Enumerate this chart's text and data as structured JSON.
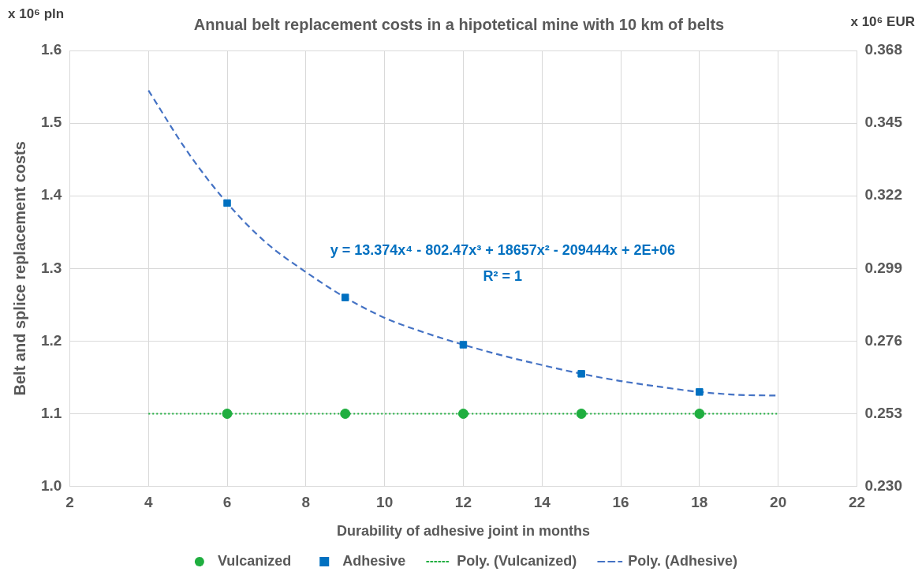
{
  "chart_data": {
    "type": "scatter",
    "title": "Annual belt replacement costs in a hipotetical mine with 10 km of belts",
    "xlabel": "Durability of adhesive joint in months",
    "ylabel": "Belt and splice replacement costs",
    "annotations": [
      "x 10⁶ pln",
      "x 10⁶ EUR",
      "y = 13.374x⁴ - 802.47x³ + 18657x² - 209444x + 2E+06",
      "R² = 1"
    ],
    "series": [
      {
        "name": "Vulcanized",
        "type": "scatter",
        "color": "#1fae3f",
        "marker": "circle",
        "x": [
          6,
          9,
          12,
          15,
          18
        ],
        "values": [
          1.1,
          1.1,
          1.1,
          1.1,
          1.1
        ]
      },
      {
        "name": "Adhesive",
        "type": "scatter",
        "color": "#0070c0",
        "marker": "square",
        "x": [
          6,
          9,
          12,
          15,
          18
        ],
        "values": [
          1.39,
          1.26,
          1.195,
          1.155,
          1.13
        ]
      },
      {
        "name": "Poly. (Vulcanized)",
        "type": "line",
        "color": "#1fae3f",
        "line_style": "dotted",
        "marker": "none",
        "x": [
          4,
          20
        ],
        "values": [
          1.1,
          1.1
        ]
      },
      {
        "name": "Poly. (Adhesive)",
        "type": "line",
        "color": "#4472c4",
        "line_style": "dashed",
        "marker": "none",
        "x": [
          4,
          5,
          6,
          7,
          8,
          9,
          10,
          11,
          12,
          13,
          14,
          15,
          16,
          17,
          18,
          19,
          20
        ],
        "values": [
          1.545,
          1.46,
          1.39,
          1.335,
          1.295,
          1.26,
          1.232,
          1.212,
          1.195,
          1.18,
          1.167,
          1.155,
          1.145,
          1.137,
          1.13,
          1.126,
          1.125
        ]
      }
    ],
    "xlim": [
      2,
      22
    ],
    "xticks": [
      2,
      4,
      6,
      8,
      10,
      12,
      14,
      16,
      18,
      20,
      22
    ],
    "ylim": [
      1.0,
      1.6
    ],
    "yticks": [
      {
        "value": 1.0,
        "label": "1.0"
      },
      1.1,
      1.2,
      1.3,
      1.4,
      1.5,
      1.6
    ],
    "y2lim": [
      0.23,
      0.368
    ],
    "y2ticks": [
      {
        "value": 0.23,
        "label": "0.230"
      },
      0.253,
      0.276,
      0.299,
      0.322,
      0.345,
      0.368
    ],
    "grid": true,
    "legend": "bottom"
  }
}
